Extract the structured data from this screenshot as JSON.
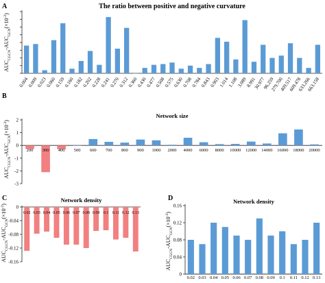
{
  "colors": {
    "positive": "#5b9bd5",
    "negative": "#f28080",
    "axis": "#222222"
  },
  "chart_data": [
    {
      "panel": "A",
      "type": "bar",
      "title": "The ratio between positive and negative curvature",
      "ylabel": "AUC_CGCN-AUC_GCN(×10^-2)",
      "ylabel_main": "AUC",
      "ylabel_sub1": "CGCN",
      "ylabel_mid": "-AUC",
      "ylabel_sub2": "GCN",
      "ylabel_tail": "(×10",
      "ylabel_exp": "-2",
      "ylabel_close": ")",
      "ylim": [
        0,
        0.8
      ],
      "yticks": [
        0,
        0.1,
        0.2,
        0.3,
        0.4,
        0.5,
        0.6,
        0.7,
        0.8
      ],
      "tick_labels_shown": false,
      "categories": [
        "0.004",
        "0.009",
        "0.023",
        "0.060",
        "0.159",
        "0.160",
        "0.182",
        "0.202",
        "0.228",
        "0.241",
        "0.270",
        "0.312",
        "0.360",
        "0.430",
        "0.477",
        "0.508",
        "0.575",
        "0.630",
        "0.708",
        "0.784",
        "0.843",
        "0.903",
        "1.014",
        "1.108",
        "3.089",
        "8.991",
        "30.977",
        "96.259",
        "279.700",
        "409.517",
        "609.478",
        "633.266",
        "663.158"
      ],
      "values": [
        0.36,
        0.38,
        0.04,
        0.43,
        0.65,
        0.06,
        0.16,
        0.29,
        0.11,
        0.73,
        0.32,
        0.59,
        0.0,
        0.07,
        0.11,
        0.12,
        0.14,
        0.06,
        0.1,
        0.07,
        0.12,
        0.46,
        0.41,
        0.18,
        0.69,
        0.15,
        0.37,
        0.2,
        0.23,
        0.39,
        0.2,
        0.07,
        0.37
      ],
      "grid": false
    },
    {
      "panel": "B",
      "type": "bar",
      "title": "Network size",
      "ylabel": "AUC_CGCN-AUC_GCN(×10^-2)",
      "ylabel_main": "AUC",
      "ylabel_sub1": "CGCN",
      "ylabel_mid": "-AUC",
      "ylabel_sub2": "GCN",
      "ylabel_tail": "(×10",
      "ylabel_exp": "-2",
      "ylabel_close": ")",
      "ylim": [
        -3,
        2
      ],
      "yticks": [
        -3,
        -2,
        -1,
        0,
        1,
        2
      ],
      "ytick_labels": [
        "-3",
        "-2",
        "-1",
        "0",
        "1",
        "2"
      ],
      "categories": [
        "200",
        "300",
        "400",
        "500",
        "600",
        "700",
        "800",
        "900",
        "1000",
        "2000",
        "4000",
        "6000",
        "8000",
        "10000",
        "12000",
        "14000",
        "16000",
        "18000",
        "20000"
      ],
      "values": [
        -0.28,
        -2.1,
        -0.3,
        0.02,
        0.5,
        0.28,
        0.22,
        0.46,
        0.4,
        0.05,
        0.6,
        0.25,
        0.1,
        0.12,
        0.3,
        0.15,
        0.95,
        1.25,
        0.08
      ],
      "grid": false
    },
    {
      "panel": "C",
      "type": "bar",
      "title": "Network density",
      "ylabel": "AUC_CGCN-AUC_GCN(×10^-2)",
      "ylabel_main": "AUC",
      "ylabel_sub1": "CGCN",
      "ylabel_mid": "-AUC",
      "ylabel_sub2": "GCN",
      "ylabel_tail": "(×10",
      "ylabel_exp": "-2",
      "ylabel_close": ")",
      "ylim": [
        -0.16,
        0
      ],
      "yticks": [
        -0.16,
        -0.12,
        -0.08,
        -0.04,
        0
      ],
      "ytick_labels": [
        "-0.16",
        "-0.12",
        "-0.08",
        "-0.04",
        "0"
      ],
      "categories": [
        "0.02",
        "0.03",
        "0.04",
        "0.05",
        "0.06",
        "0.07",
        "0.08",
        "0.09",
        "0.1",
        "0.11",
        "0.12",
        "0.13"
      ],
      "values": [
        -0.128,
        -0.078,
        -0.072,
        -0.09,
        -0.11,
        -0.11,
        -0.12,
        -0.07,
        -0.068,
        -0.095,
        -0.09,
        -0.13
      ],
      "grid": false
    },
    {
      "panel": "D",
      "type": "bar",
      "title": "Network density",
      "ylabel": "AUC_CGCN-AUC_GCN(×10^-2)",
      "ylabel_main": "AUC",
      "ylabel_sub1": "CGCN",
      "ylabel_mid": "-AUC",
      "ylabel_sub2": "GCN",
      "ylabel_tail": "(×10",
      "ylabel_exp": "-2",
      "ylabel_close": ")",
      "ylim": [
        0,
        0.16
      ],
      "yticks": [
        0,
        0.04,
        0.08,
        0.12,
        0.16
      ],
      "ytick_labels": [
        "0",
        "0.04",
        "0.08",
        "0.12",
        "0.16"
      ],
      "categories": [
        "0.02",
        "0.03",
        "0.04",
        "0.05",
        "0.06",
        "0.07",
        "0.08",
        "0.09",
        "0.1",
        "0.11",
        "0.12",
        "0.13"
      ],
      "values": [
        0.08,
        0.07,
        0.12,
        0.11,
        0.09,
        0.08,
        0.13,
        0.09,
        0.1,
        0.07,
        0.08,
        0.12
      ],
      "grid": false
    }
  ]
}
